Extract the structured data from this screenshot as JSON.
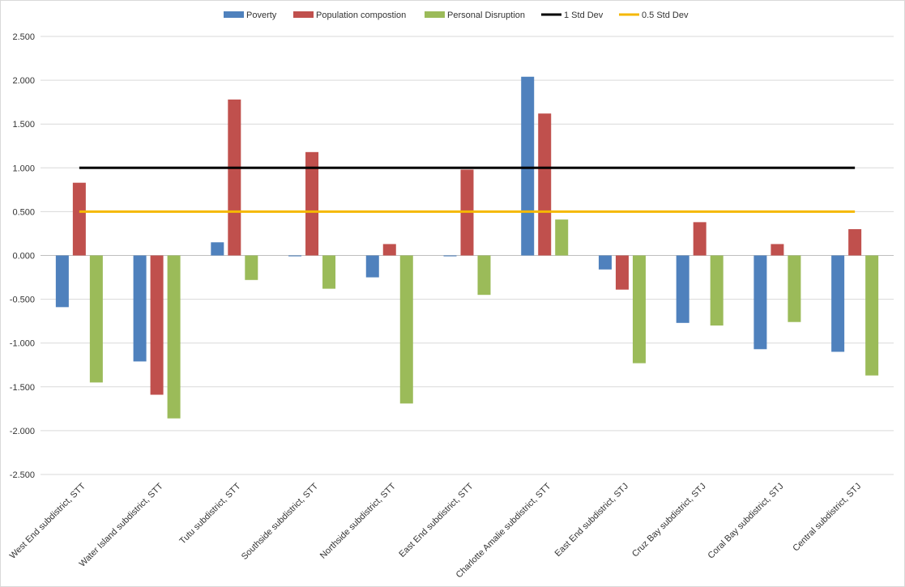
{
  "chart_data": {
    "type": "bar",
    "title": "",
    "xlabel": "",
    "ylabel": "",
    "ylim": [
      -2.5,
      2.5
    ],
    "yticks": [
      2.5,
      2.0,
      1.5,
      1.0,
      0.5,
      0.0,
      -0.5,
      -1.0,
      -1.5,
      -2.0,
      -2.5
    ],
    "ytick_labels": [
      "2.500",
      "2.000",
      "1.500",
      "1.000",
      "0.500",
      "0.000",
      "-0.500",
      "-1.000",
      "-1.500",
      "-2.000",
      "-2.500"
    ],
    "grid": true,
    "legend_position": "top",
    "categories": [
      "West End subdistrict, STT",
      "Water Island subdistrict, STT",
      "Tutu subdistrict, STT",
      "Southside subdistrict, STT",
      "Northside subdistrict, STT",
      "East End subdistrict, STT",
      "Charlotte Amalie subdistrict, STT",
      "East End subdistrict, STJ",
      "Cruz Bay subdistrict, STJ",
      "Coral Bay subdistrict, STJ",
      "Central subdistrict, STJ"
    ],
    "series": [
      {
        "name": "Poverty",
        "color": "#4f81bd",
        "values": [
          -0.59,
          -1.21,
          0.15,
          -0.01,
          -0.25,
          -0.01,
          2.04,
          -0.16,
          -0.77,
          -1.07,
          -1.1
        ]
      },
      {
        "name": "Population compostion",
        "color": "#c0504d",
        "values": [
          0.83,
          -1.59,
          1.78,
          1.18,
          0.13,
          0.98,
          1.62,
          -0.39,
          0.38,
          0.13,
          0.3
        ]
      },
      {
        "name": "Personal Disruption",
        "color": "#9bbb59",
        "values": [
          -1.45,
          -1.86,
          -0.28,
          -0.38,
          -1.69,
          -0.45,
          0.41,
          -1.23,
          -0.8,
          -0.76,
          -1.37
        ]
      }
    ],
    "lines": [
      {
        "name": "1 Std Dev",
        "color": "#000000",
        "value": 1.0
      },
      {
        "name": "0.5 Std Dev",
        "color": "#f5b800",
        "value": 0.5
      }
    ]
  }
}
